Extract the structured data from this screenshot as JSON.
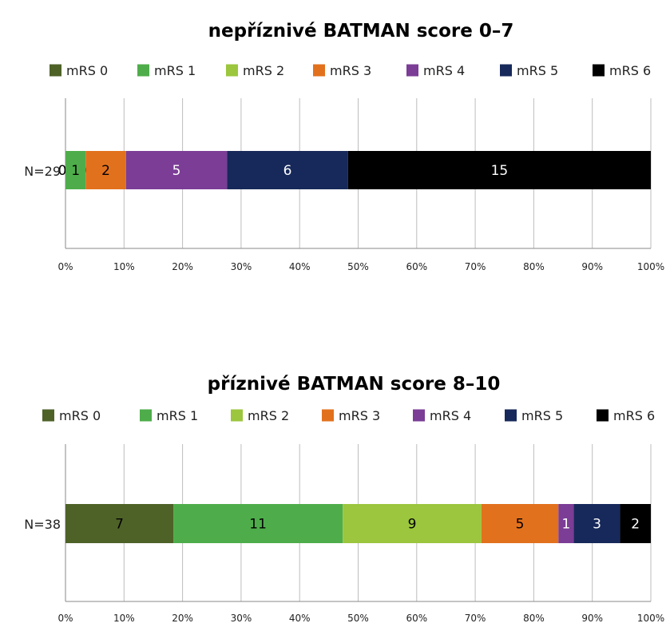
{
  "legend_labels": [
    "mRS 0",
    "mRS 1",
    "mRS 2",
    "mRS 3",
    "mRS 4",
    "mRS 5",
    "mRS 6"
  ],
  "colors": [
    "#4e6228",
    "#4ead4a",
    "#9bc63d",
    "#e2711d",
    "#7b3d96",
    "#17295a",
    "#000000"
  ],
  "label_colors": [
    "#000000",
    "#000000",
    "#000000",
    "#000000",
    "#ffffff",
    "#ffffff",
    "#ffffff"
  ],
  "chart_data": [
    {
      "type": "bar",
      "orientation": "horizontal",
      "stacked": "percent",
      "title": "nepříznivé BATMAN score 0–7",
      "categories": [
        "N=29"
      ],
      "series": [
        {
          "name": "mRS 0",
          "values": [
            0
          ]
        },
        {
          "name": "mRS 1",
          "values": [
            1
          ]
        },
        {
          "name": "mRS 2",
          "values": [
            0
          ]
        },
        {
          "name": "mRS 3",
          "values": [
            2
          ]
        },
        {
          "name": "mRS 4",
          "values": [
            5
          ]
        },
        {
          "name": "mRS 5",
          "values": [
            6
          ]
        },
        {
          "name": "mRS 6",
          "values": [
            15
          ]
        }
      ],
      "xlim": [
        0,
        100
      ],
      "xticks": [
        "0%",
        "10%",
        "20%",
        "30%",
        "40%",
        "50%",
        "60%",
        "70%",
        "80%",
        "90%",
        "100%"
      ],
      "legend": "top",
      "grid": true
    },
    {
      "type": "bar",
      "orientation": "horizontal",
      "stacked": "percent",
      "title": "příznivé BATMAN score 8–10",
      "categories": [
        "N=38"
      ],
      "series": [
        {
          "name": "mRS 0",
          "values": [
            7
          ]
        },
        {
          "name": "mRS 1",
          "values": [
            11
          ]
        },
        {
          "name": "mRS 2",
          "values": [
            9
          ]
        },
        {
          "name": "mRS 3",
          "values": [
            5
          ]
        },
        {
          "name": "mRS 4",
          "values": [
            1
          ]
        },
        {
          "name": "mRS 5",
          "values": [
            3
          ]
        },
        {
          "name": "mRS 6",
          "values": [
            2
          ]
        }
      ],
      "xlim": [
        0,
        100
      ],
      "xticks": [
        "0%",
        "10%",
        "20%",
        "30%",
        "40%",
        "50%",
        "60%",
        "70%",
        "80%",
        "90%",
        "100%"
      ],
      "legend": "top",
      "grid": true
    }
  ]
}
